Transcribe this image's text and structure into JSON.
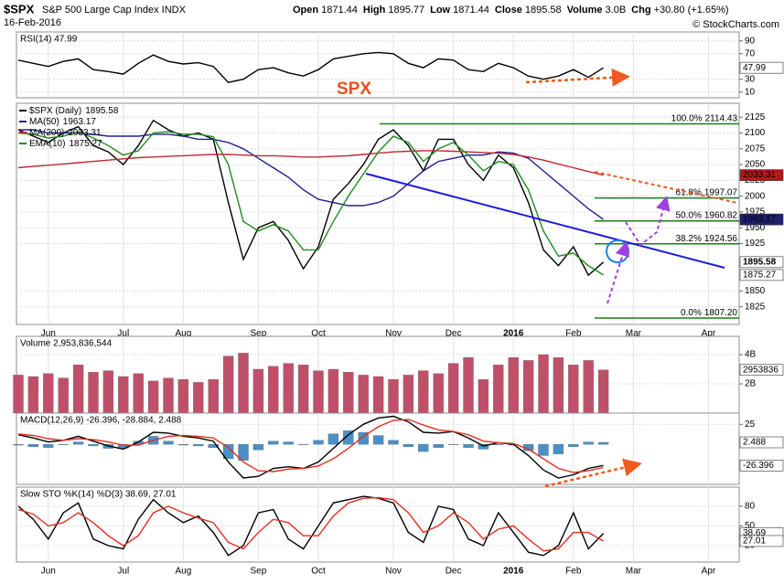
{
  "header": {
    "symbol": "$SPX",
    "name": "S&P 500 Large Cap Index INDX",
    "date": "16-Feb-2016",
    "quote": [
      {
        "label": "Open",
        "value": "1871.44"
      },
      {
        "label": "High",
        "value": "1895.77"
      },
      {
        "label": "Low",
        "value": "1871.44"
      },
      {
        "label": "Close",
        "value": "1895.58"
      },
      {
        "label": "Volume",
        "value": "3.0B"
      },
      {
        "label": "Chg",
        "value": "+30.80 (+1.65%)"
      }
    ],
    "credit": "© StockCharts.com"
  },
  "chart_data": [
    {
      "type": "line",
      "title": "RSI(14) 47.99",
      "ylim": [
        1,
        104
      ],
      "yticks": [
        90,
        70,
        30,
        10
      ],
      "grid": true,
      "series": [
        {
          "color": "#000000",
          "tag_color": "#ffffff",
          "values": [
            60,
            55,
            50,
            58,
            62,
            45,
            42,
            38,
            55,
            68,
            58,
            54,
            56,
            50,
            25,
            30,
            45,
            48,
            40,
            35,
            45,
            62,
            66,
            70,
            72,
            70,
            55,
            48,
            62,
            60,
            45,
            42,
            55,
            48,
            35,
            30,
            35,
            45,
            33,
            47.99,
            null,
            null,
            null,
            null,
            null,
            null,
            null,
            null
          ]
        }
      ]
    },
    {
      "type": "line",
      "ylim": [
        1797,
        2147
      ],
      "yticks": [
        2125,
        2100,
        2075,
        2050,
        2025,
        2000,
        1975,
        1950,
        1925,
        1850,
        1825
      ],
      "grid": true,
      "annotation": "SPX",
      "categories": [
        null,
        null,
        "Jun",
        null,
        null,
        null,
        null,
        "Jul",
        null,
        null,
        null,
        "Aug",
        null,
        null,
        null,
        null,
        "Sep",
        null,
        null,
        null,
        "Oct",
        null,
        null,
        null,
        null,
        "Nov",
        null,
        null,
        null,
        "Dec",
        null,
        null,
        null,
        "2016",
        null,
        null,
        null,
        "Feb",
        null,
        null,
        null,
        "Mar",
        null,
        null,
        null,
        null,
        "Apr",
        null
      ],
      "series": [
        {
          "name": "$SPX (Daily)",
          "color": "#000000",
          "tag_color": "#ffffff",
          "values": [
            2105,
            2095,
            2085,
            2100,
            2110,
            2080,
            2070,
            2050,
            2080,
            2120,
            2105,
            2095,
            2100,
            2090,
            1990,
            1900,
            1950,
            1960,
            1930,
            1885,
            1920,
            1995,
            2020,
            2050,
            2090,
            2105,
            2080,
            2040,
            2090,
            2090,
            2050,
            2025,
            2065,
            2045,
            1990,
            1915,
            1890,
            1920,
            1875,
            1895.58,
            null,
            null,
            null,
            null,
            null,
            null,
            null,
            null
          ]
        },
        {
          "name": "MA(50)",
          "color": "#1f1f8f",
          "tag_color": "#1f1f6f",
          "values": [
            2105,
            2105,
            2100,
            2100,
            2100,
            2098,
            2095,
            2095,
            2095,
            2098,
            2098,
            2095,
            2090,
            2090,
            2085,
            2075,
            2060,
            2045,
            2030,
            2010,
            1995,
            1990,
            1985,
            1985,
            1990,
            2000,
            2020,
            2040,
            2055,
            2060,
            2065,
            2065,
            2070,
            2068,
            2060,
            2040,
            2020,
            2000,
            1980,
            1963.17,
            null,
            null,
            null,
            null,
            null,
            null,
            null,
            null
          ]
        },
        {
          "name": "MA(200)",
          "color": "#c0282d",
          "tag_color": "#b01a1a",
          "values": [
            2045,
            2047,
            2049,
            2051,
            2053,
            2055,
            2057,
            2059,
            2061,
            2062,
            2063,
            2064,
            2065,
            2066,
            2066,
            2065,
            2064,
            2064,
            2063,
            2062,
            2062,
            2063,
            2064,
            2066,
            2068,
            2070,
            2071,
            2072,
            2072,
            2071,
            2070,
            2069,
            2068,
            2066,
            2062,
            2057,
            2051,
            2045,
            2039,
            2033.31,
            null,
            null,
            null,
            null,
            null,
            null,
            null,
            null
          ]
        },
        {
          "name": "EMA(10)",
          "color": "#1e8c1e",
          "tag_color": "#ffffff",
          "values": [
            2100,
            2098,
            2092,
            2095,
            2102,
            2092,
            2080,
            2065,
            2072,
            2100,
            2102,
            2098,
            2098,
            2094,
            2050,
            1960,
            1945,
            1955,
            1945,
            1915,
            1915,
            1960,
            2000,
            2035,
            2070,
            2095,
            2085,
            2055,
            2075,
            2085,
            2065,
            2040,
            2055,
            2050,
            2010,
            1945,
            1905,
            1910,
            1890,
            1875.27,
            null,
            null,
            null,
            null,
            null,
            null,
            null,
            null
          ]
        }
      ],
      "retracements": [
        {
          "level": "100.0%",
          "price": 2114.43
        },
        {
          "level": "61.8%",
          "price": 1997.07
        },
        {
          "level": "50.0%",
          "price": 1960.82
        },
        {
          "level": "38.2%",
          "price": 1924.56
        },
        {
          "level": "0.0%",
          "price": {
            "value": 1807.2,
            "label": "1807.20"
          }
        }
      ],
      "retracement_color": "#1f7a1f"
    },
    {
      "type": "bar",
      "title": "Volume 2,953,836,544",
      "ylim": [
        0,
        5250000000
      ],
      "yticks": [
        {
          "value": 4000000000,
          "label": "4B"
        },
        {
          "value": 2000000000,
          "label": "2B"
        }
      ],
      "grid": true,
      "last_label": "2953836",
      "color": "#c0506a",
      "values": [
        2600000000,
        2500000000,
        2700000000,
        2400000000,
        3300000000,
        2800000000,
        2900000000,
        2500000000,
        2700000000,
        2200000000,
        2400000000,
        2300000000,
        2100000000,
        2300000000,
        3900000000,
        4100000000,
        3000000000,
        3200000000,
        3400000000,
        3300000000,
        2900000000,
        3000000000,
        2800000000,
        2600000000,
        2500000000,
        2300000000,
        2600000000,
        2900000000,
        2700000000,
        3400000000,
        3800000000,
        2300000000,
        3300000000,
        3800000000,
        3600000000,
        4000000000,
        3800000000,
        3300000000,
        3600000000,
        2953836544,
        null,
        null,
        null,
        null,
        null,
        null,
        null,
        null
      ]
    },
    {
      "type": "line",
      "title": "MACD(12,26,9) -26.396, -28.884, 2.488",
      "ylim": [
        -50,
        39
      ],
      "yticks": [
        25
      ],
      "grid": true,
      "series": [
        {
          "kind": "bar",
          "color": "#4a90c8",
          "tag_color": "#ffffff",
          "values": [
            -1,
            -3,
            -4,
            0,
            3,
            -2,
            -5,
            -5,
            4,
            10,
            4,
            -1,
            -2,
            -4,
            -18,
            -20,
            -7,
            4,
            3,
            0,
            5,
            13,
            17,
            15,
            11,
            5,
            -3,
            -9,
            -4,
            0,
            -4,
            -6,
            0,
            -1,
            -8,
            -14,
            -12,
            -3,
            3,
            2.488,
            null,
            null,
            null,
            null,
            null,
            null,
            null,
            null
          ]
        },
        {
          "color": "#000000",
          "tag_color": "#ffffff",
          "values": [
            12,
            8,
            3,
            5,
            10,
            4,
            -2,
            -6,
            3,
            15,
            14,
            10,
            8,
            4,
            -22,
            -42,
            -40,
            -30,
            -28,
            -30,
            -22,
            -5,
            12,
            25,
            33,
            35,
            28,
            15,
            14,
            16,
            8,
            -2,
            2,
            0,
            -14,
            -32,
            -42,
            -38,
            -30,
            -26.396,
            null,
            null,
            null,
            null,
            null,
            null,
            null,
            null
          ]
        },
        {
          "color": "#e03020",
          "values": [
            13,
            11,
            7,
            5,
            7,
            6,
            3,
            -1,
            -1,
            5,
            10,
            11,
            10,
            8,
            -4,
            -22,
            -33,
            -34,
            -31,
            -30,
            -27,
            -18,
            -5,
            10,
            22,
            30,
            31,
            24,
            18,
            16,
            12,
            4,
            2,
            1,
            -6,
            -18,
            -30,
            -35,
            -33,
            -28.884,
            null,
            null,
            null,
            null,
            null,
            null,
            null,
            null
          ]
        }
      ]
    },
    {
      "type": "line",
      "title": "Slow STO %K(14) %D(3) 38.69, 27.01",
      "ylim": [
        -5,
        109
      ],
      "yticks": [
        80,
        50,
        20
      ],
      "grid": true,
      "categories": [
        null,
        null,
        "Jun",
        null,
        null,
        null,
        null,
        "Jul",
        null,
        null,
        null,
        "Aug",
        null,
        null,
        null,
        null,
        "Sep",
        null,
        null,
        null,
        "Oct",
        null,
        null,
        null,
        null,
        "Nov",
        null,
        null,
        null,
        "Dec",
        null,
        null,
        null,
        "2016",
        null,
        null,
        null,
        "Feb",
        null,
        null,
        null,
        "Mar",
        null,
        null,
        null,
        null,
        "Apr",
        null
      ],
      "series": [
        {
          "color": "#000000",
          "tag_color": "#ffffff",
          "values": [
            80,
            60,
            30,
            70,
            85,
            30,
            20,
            15,
            60,
            90,
            70,
            55,
            65,
            40,
            5,
            20,
            70,
            75,
            30,
            15,
            50,
            85,
            90,
            95,
            92,
            85,
            40,
            25,
            80,
            75,
            30,
            20,
            70,
            40,
            10,
            5,
            20,
            70,
            15,
            38.69,
            null,
            null,
            null,
            null,
            null,
            null,
            null,
            null
          ]
        },
        {
          "color": "#e03020",
          "tag_color": "#ffffff",
          "values": [
            75,
            68,
            50,
            55,
            70,
            55,
            35,
            20,
            35,
            70,
            80,
            70,
            62,
            55,
            25,
            15,
            40,
            60,
            55,
            35,
            35,
            65,
            85,
            92,
            93,
            90,
            70,
            40,
            50,
            70,
            55,
            30,
            45,
            50,
            30,
            12,
            15,
            40,
            40,
            27.01,
            null,
            null,
            null,
            null,
            null,
            null,
            null,
            null
          ]
        }
      ]
    }
  ]
}
